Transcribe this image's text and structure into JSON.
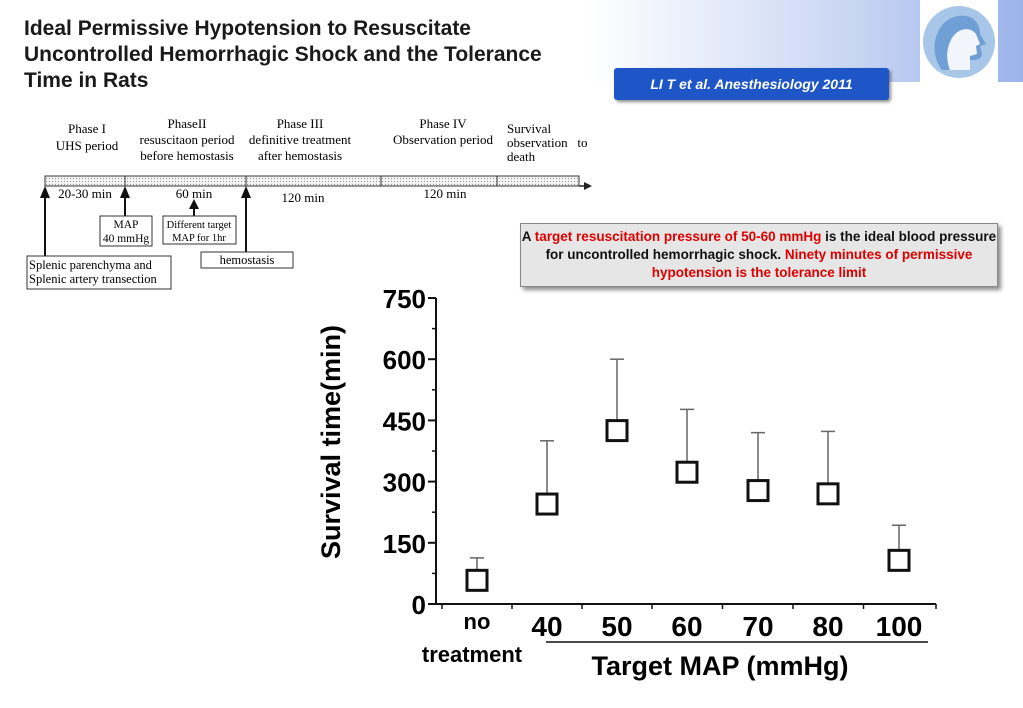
{
  "slide": {
    "title": "Ideal Permissive Hypotension to Resuscitate Uncontrolled Hemorrhagic Shock and the Tolerance Time in Rats",
    "citation": "LI T et al. Anesthesiology 2011"
  },
  "callout": {
    "part1": "A ",
    "highlight1": "target resuscitation pressure of 50-60 mmHg",
    "part2": " is the ideal blood pressure for uncontrolled hemorrhagic shock. ",
    "highlight2": "Ninety minutes of permissive hypotension is the tolerance limit"
  },
  "timeline": {
    "phases": [
      {
        "line1": "Phase I",
        "line2": "UHS period",
        "line3": "",
        "duration": "20-30 min"
      },
      {
        "line1": "PhaseII",
        "line2": "resuscitaon period",
        "line3": "before hemostasis",
        "duration": "60 min"
      },
      {
        "line1": "Phase III",
        "line2": "definitive treatment",
        "line3": "after hemostasis",
        "duration": "120 min"
      },
      {
        "line1": "Phase IV",
        "line2": "Observation period",
        "line3": "",
        "duration": "120 min"
      },
      {
        "line1": "Survival",
        "line2": "observation   to",
        "line3": "death",
        "duration": ""
      }
    ],
    "boxes": {
      "splenic_line1": "Splenic parenchyma and",
      "splenic_line2": "Splenic artery transection",
      "map_line1": "MAP",
      "map_line2": "40 mmHg",
      "target_line1": "Different target",
      "target_line2": "MAP for 1hr",
      "hemostasis": "hemostasis"
    }
  },
  "chart_data": {
    "type": "scatter",
    "categories": [
      "no treatment",
      "40",
      "50",
      "60",
      "70",
      "80",
      "100"
    ],
    "category_labels": {
      "no_line1": "no",
      "no_line2": "treatment"
    },
    "values": [
      58,
      245,
      425,
      323,
      278,
      270,
      107
    ],
    "error_upper": [
      113,
      400,
      600,
      477,
      420,
      423,
      193
    ],
    "xlabel": "Target MAP (mmHg)",
    "ylabel": "Survival time(min)",
    "ylim": [
      0,
      750
    ],
    "yticks": [
      "0",
      "150",
      "300",
      "450",
      "600",
      "750"
    ],
    "marker": "open-square",
    "grid": false
  }
}
